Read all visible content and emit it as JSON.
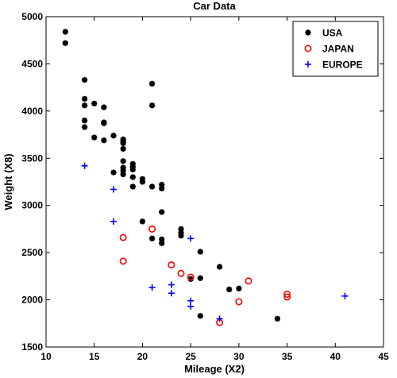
{
  "chart_data": {
    "type": "scatter",
    "title": "Car Data",
    "xlabel": "Mileage (X2)",
    "ylabel": "Weight (X8)",
    "xlim": [
      10,
      45
    ],
    "ylim": [
      1500,
      5000
    ],
    "xticks": [
      10,
      15,
      20,
      25,
      30,
      35,
      40,
      45
    ],
    "yticks": [
      1500,
      2000,
      2500,
      3000,
      3500,
      4000,
      4500,
      5000
    ],
    "grid": false,
    "legend_position": "top-right",
    "series": [
      {
        "name": "USA",
        "marker": "asterisk",
        "color": "#000000",
        "points": [
          [
            12,
            4840
          ],
          [
            12,
            4720
          ],
          [
            14,
            4330
          ],
          [
            14,
            4130
          ],
          [
            14,
            4060
          ],
          [
            14,
            3900
          ],
          [
            14,
            3830
          ],
          [
            15,
            4080
          ],
          [
            15,
            3720
          ],
          [
            16,
            4040
          ],
          [
            16,
            3880
          ],
          [
            16,
            3870
          ],
          [
            16,
            3690
          ],
          [
            17,
            3740
          ],
          [
            17,
            3350
          ],
          [
            18,
            3700
          ],
          [
            18,
            3680
          ],
          [
            18,
            3660
          ],
          [
            18,
            3600
          ],
          [
            18,
            3470
          ],
          [
            18,
            3400
          ],
          [
            18,
            3370
          ],
          [
            18,
            3330
          ],
          [
            19,
            3440
          ],
          [
            19,
            3410
          ],
          [
            19,
            3380
          ],
          [
            19,
            3300
          ],
          [
            19,
            3200
          ],
          [
            20,
            3280
          ],
          [
            20,
            3250
          ],
          [
            20,
            2830
          ],
          [
            21,
            4290
          ],
          [
            21,
            4060
          ],
          [
            21,
            3200
          ],
          [
            21,
            2650
          ],
          [
            22,
            3220
          ],
          [
            22,
            3180
          ],
          [
            22,
            2930
          ],
          [
            22,
            2640
          ],
          [
            22,
            2600
          ],
          [
            24,
            2750
          ],
          [
            24,
            2710
          ],
          [
            24,
            2680
          ],
          [
            25,
            2220
          ],
          [
            26,
            2510
          ],
          [
            26,
            2230
          ],
          [
            26,
            1830
          ],
          [
            28,
            2350
          ],
          [
            29,
            2110
          ],
          [
            30,
            2120
          ],
          [
            34,
            1800
          ]
        ]
      },
      {
        "name": "JAPAN",
        "marker": "circle",
        "color": "#ff0000",
        "points": [
          [
            18,
            2660
          ],
          [
            18,
            2410
          ],
          [
            21,
            2750
          ],
          [
            23,
            2370
          ],
          [
            24,
            2280
          ],
          [
            25,
            2240
          ],
          [
            28,
            1760
          ],
          [
            30,
            1980
          ],
          [
            31,
            2200
          ],
          [
            35,
            2060
          ],
          [
            35,
            2030
          ]
        ]
      },
      {
        "name": "EUROPE",
        "marker": "plus",
        "color": "#0000ff",
        "points": [
          [
            14,
            3420
          ],
          [
            17,
            3170
          ],
          [
            17,
            2830
          ],
          [
            21,
            2130
          ],
          [
            23,
            2160
          ],
          [
            23,
            2070
          ],
          [
            25,
            2650
          ],
          [
            25,
            1990
          ],
          [
            25,
            1930
          ],
          [
            28,
            1800
          ],
          [
            41,
            2040
          ]
        ]
      }
    ]
  }
}
